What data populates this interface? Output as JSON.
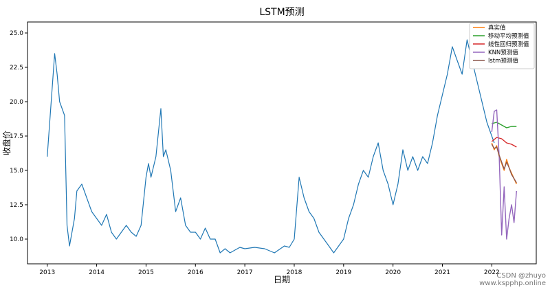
{
  "chart_data": {
    "type": "line",
    "title": "LSTM预测",
    "xlabel": "日期",
    "ylabel": "收盘价",
    "xlim": [
      2012.6,
      2022.9
    ],
    "ylim": [
      8.2,
      25.8
    ],
    "x_ticks": [
      2013,
      2014,
      2015,
      2016,
      2017,
      2018,
      2019,
      2020,
      2021,
      2022
    ],
    "x_tick_labels": [
      "2013",
      "2014",
      "2015",
      "2016",
      "2017",
      "2018",
      "2019",
      "2020",
      "2021",
      "2022"
    ],
    "y_ticks": [
      10.0,
      12.5,
      15.0,
      17.5,
      20.0,
      22.5,
      25.0
    ],
    "y_tick_labels": [
      "10.0",
      "12.5",
      "15.0",
      "17.5",
      "20.0",
      "22.5",
      "25.0"
    ],
    "legend_position": "top-right",
    "grid": false,
    "series": [
      {
        "name": "",
        "color": "#1f77b4",
        "x": [
          2013.0,
          2013.05,
          2013.1,
          2013.15,
          2013.2,
          2013.25,
          2013.3,
          2013.35,
          2013.4,
          2013.45,
          2013.5,
          2013.55,
          2013.6,
          2013.7,
          2013.8,
          2013.9,
          2014.0,
          2014.1,
          2014.2,
          2014.3,
          2014.4,
          2014.5,
          2014.6,
          2014.7,
          2014.8,
          2014.9,
          2015.0,
          2015.05,
          2015.1,
          2015.2,
          2015.3,
          2015.35,
          2015.4,
          2015.5,
          2015.6,
          2015.7,
          2015.8,
          2015.9,
          2016.0,
          2016.1,
          2016.2,
          2016.3,
          2016.4,
          2016.5,
          2016.6,
          2016.7,
          2016.8,
          2016.9,
          2017.0,
          2017.2,
          2017.4,
          2017.6,
          2017.8,
          2017.9,
          2018.0,
          2018.1,
          2018.2,
          2018.3,
          2018.4,
          2018.5,
          2018.6,
          2018.7,
          2018.8,
          2018.9,
          2019.0,
          2019.1,
          2019.2,
          2019.3,
          2019.4,
          2019.5,
          2019.6,
          2019.7,
          2019.8,
          2019.9,
          2020.0,
          2020.1,
          2020.2,
          2020.3,
          2020.4,
          2020.5,
          2020.6,
          2020.7,
          2020.8,
          2020.9,
          2021.0,
          2021.1,
          2021.2,
          2021.3,
          2021.4,
          2021.5,
          2021.6,
          2021.7,
          2021.8,
          2021.9,
          2022.0,
          2022.05
        ],
        "y": [
          16.0,
          18.5,
          21.0,
          23.5,
          22.0,
          20.0,
          19.5,
          19.0,
          11.0,
          9.5,
          10.5,
          11.5,
          13.5,
          14.0,
          13.0,
          12.0,
          11.5,
          11.0,
          11.8,
          10.5,
          10.0,
          10.5,
          11.0,
          10.5,
          10.2,
          11.0,
          14.5,
          15.5,
          14.5,
          16.0,
          19.5,
          16.0,
          16.5,
          15.0,
          12.0,
          13.0,
          11.0,
          10.5,
          10.5,
          10.0,
          10.8,
          10.0,
          10.0,
          9.0,
          9.3,
          9.0,
          9.2,
          9.4,
          9.3,
          9.4,
          9.3,
          9.0,
          9.5,
          9.4,
          10.0,
          14.5,
          13.0,
          12.0,
          11.5,
          10.5,
          10.0,
          9.5,
          9.0,
          9.5,
          10.0,
          11.5,
          12.5,
          14.0,
          15.0,
          14.5,
          16.0,
          17.0,
          15.0,
          14.0,
          12.5,
          14.0,
          16.5,
          15.0,
          16.0,
          15.0,
          16.0,
          15.5,
          17.0,
          19.0,
          20.5,
          22.0,
          24.0,
          23.0,
          22.0,
          24.5,
          23.0,
          21.5,
          20.0,
          18.5,
          17.5,
          17.0
        ]
      },
      {
        "name": "真实值",
        "color": "#ff7f0e",
        "x": [
          2022.0,
          2022.05,
          2022.1,
          2022.15,
          2022.2,
          2022.25,
          2022.3,
          2022.35,
          2022.4,
          2022.45,
          2022.5
        ],
        "y": [
          17.0,
          16.5,
          16.8,
          16.0,
          15.5,
          15.0,
          15.8,
          15.2,
          14.8,
          14.4,
          14.0
        ]
      },
      {
        "name": "移动平均预测值",
        "color": "#2ca02c",
        "x": [
          2022.0,
          2022.1,
          2022.2,
          2022.3,
          2022.4,
          2022.5
        ],
        "y": [
          18.4,
          18.5,
          18.3,
          18.1,
          18.2,
          18.2
        ]
      },
      {
        "name": "线性回归预测值",
        "color": "#d62728",
        "x": [
          2022.0,
          2022.1,
          2022.2,
          2022.3,
          2022.4,
          2022.5
        ],
        "y": [
          17.1,
          17.4,
          17.3,
          17.0,
          16.9,
          16.7
        ]
      },
      {
        "name": "KNN预测值",
        "color": "#9467bd",
        "x": [
          2022.0,
          2022.05,
          2022.1,
          2022.15,
          2022.2,
          2022.25,
          2022.3,
          2022.35,
          2022.4,
          2022.45,
          2022.5
        ],
        "y": [
          17.8,
          19.3,
          19.4,
          16.0,
          10.3,
          13.8,
          10.0,
          11.5,
          12.5,
          11.2,
          13.5
        ]
      },
      {
        "name": "lstm预测值",
        "color": "#8c564b",
        "x": [
          2022.0,
          2022.05,
          2022.1,
          2022.15,
          2022.2,
          2022.25,
          2022.3,
          2022.35,
          2022.4,
          2022.45,
          2022.5
        ],
        "y": [
          16.9,
          16.6,
          16.7,
          16.1,
          15.6,
          15.1,
          15.6,
          15.2,
          14.7,
          14.4,
          14.1
        ]
      }
    ]
  },
  "watermark": {
    "line1": "CSDN @zhuyo",
    "line2": "www.kspphp.online"
  }
}
